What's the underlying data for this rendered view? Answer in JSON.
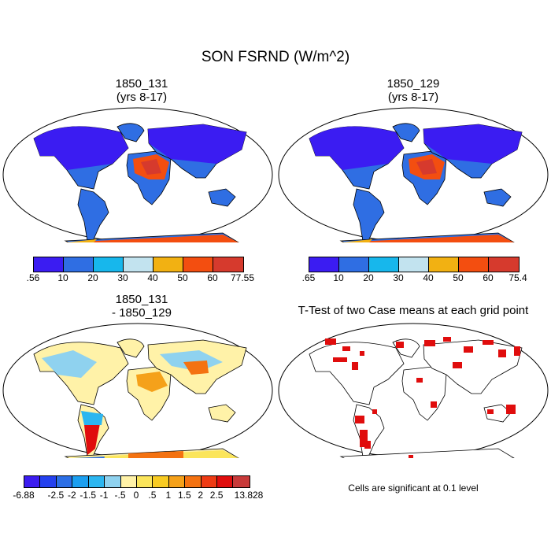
{
  "figure": {
    "title": "SON FSRND (W/m^2)",
    "panels": [
      {
        "title_line1": "1850_131",
        "title_line2": "(yrs 8-17)"
      },
      {
        "title_line1": "1850_129",
        "title_line2": "(yrs 8-17)"
      },
      {
        "title_line1": "1850_131",
        "title_line2": "- 1850_129"
      },
      {
        "title_line1": "T-Test of two Case means at each grid point",
        "title_line2": ""
      }
    ],
    "colorbars": [
      {
        "labels": [
          ".56",
          "10",
          "20",
          "30",
          "40",
          "50",
          "60",
          "77.55"
        ],
        "colors": [
          "#3b1cf2",
          "#2f6ee3",
          "#17b7ec",
          "#c2e3ef",
          "#f2b112",
          "#f34e10",
          "#d63a2d"
        ]
      },
      {
        "labels": [
          ".65",
          "10",
          "20",
          "30",
          "40",
          "50",
          "60",
          "75.4"
        ],
        "colors": [
          "#3b1cf2",
          "#2f6ee3",
          "#17b7ec",
          "#c2e3ef",
          "#f2b112",
          "#f34e10",
          "#d63a2d"
        ]
      },
      {
        "labels": [
          "-6.88",
          "-2.5",
          "-2",
          "-1.5",
          "-1",
          "-.5",
          "0",
          ".5",
          "1",
          "1.5",
          "2",
          "2.5",
          "13.828"
        ],
        "colors": [
          "#3c1cf0",
          "#2441ef",
          "#2c6fe6",
          "#1b9ff0",
          "#2cb6f0",
          "#8fd2ef",
          "#fff2a8",
          "#fbe55b",
          "#f8cb22",
          "#f5a11a",
          "#f47211",
          "#ee3b14",
          "#e00d0d",
          "#c83a3a"
        ]
      }
    ],
    "note": "Cells are significant at 0.1 level"
  }
}
